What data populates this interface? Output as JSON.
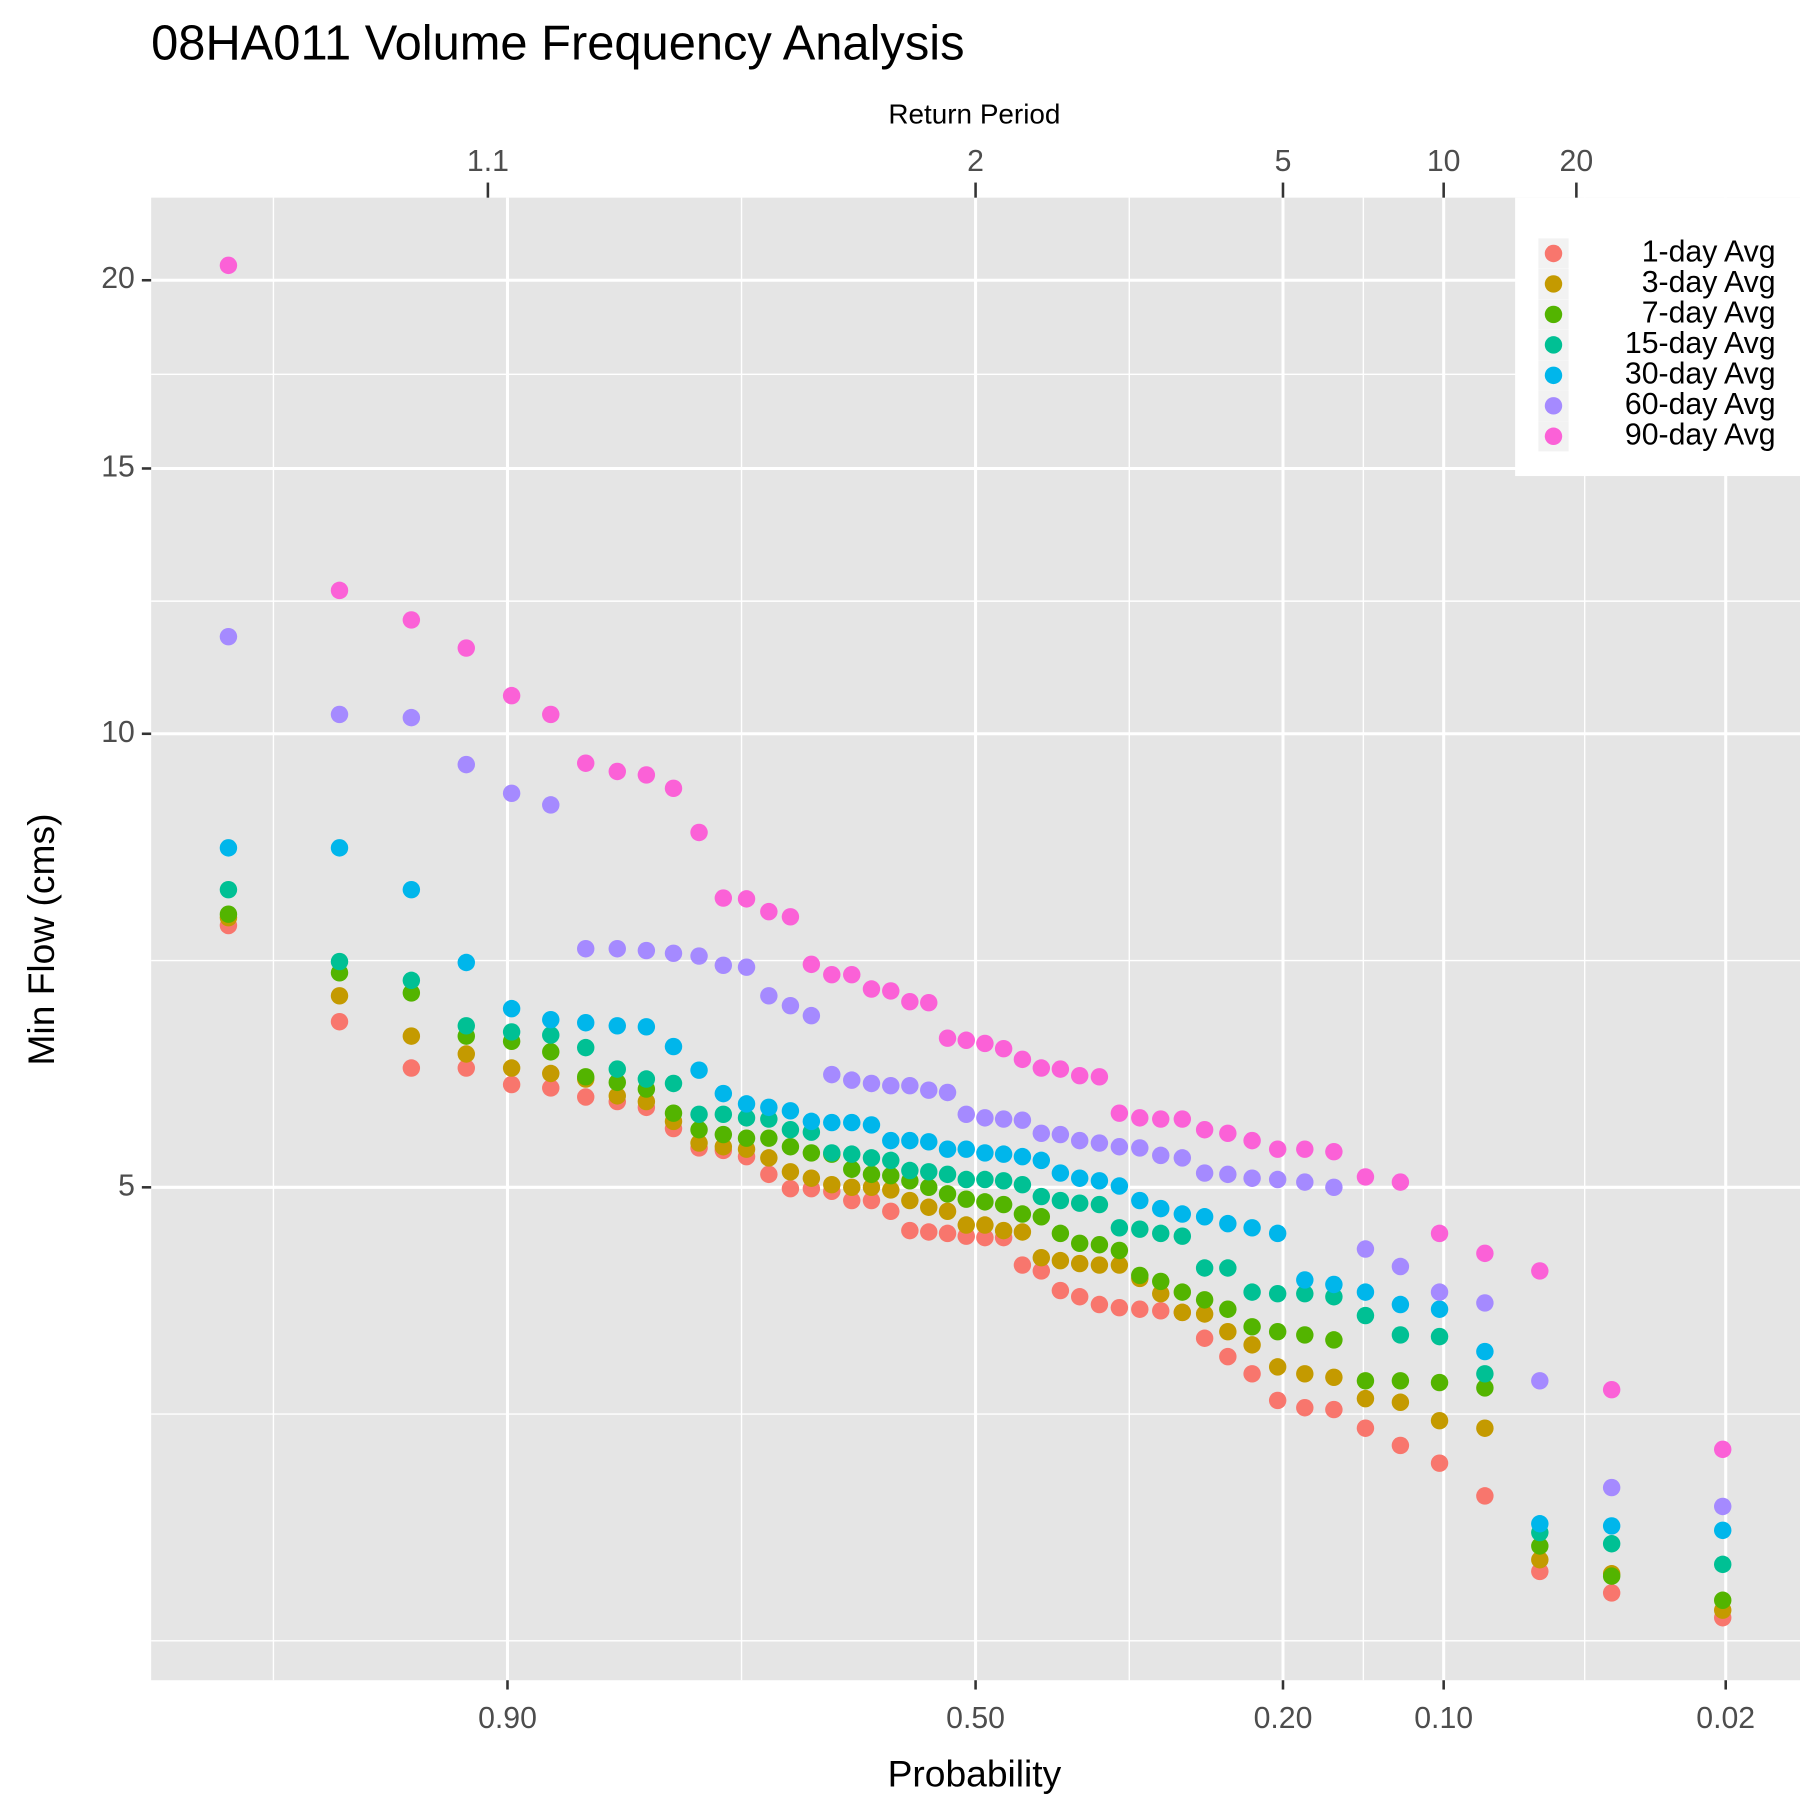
{
  "chart_data": {
    "type": "scatter",
    "title": "08HA011  Volume Frequency Analysis",
    "x_label": "Probability",
    "x2_label": "Return Period",
    "y_label": "Min Flow (cms)",
    "x_scale": "normal-probability",
    "y_scale": "log",
    "grid": true,
    "legend": "top-right",
    "xlim": [
      0.988,
      0.012
    ],
    "xticks": [
      {
        "value": 0.9,
        "label": "0.90"
      },
      {
        "value": 0.5,
        "label": "0.50"
      },
      {
        "value": 0.2,
        "label": "0.20"
      },
      {
        "value": 0.1,
        "label": "0.10"
      },
      {
        "value": 0.02,
        "label": "0.02"
      }
    ],
    "x2ticks": [
      1.1,
      2,
      5,
      10,
      20
    ],
    "ylim": [
      2.354,
      22.69
    ],
    "yticks": [
      5,
      10,
      15,
      20
    ],
    "x": [
      0.9796,
      0.9592,
      0.9388,
      0.9184,
      0.898,
      0.8776,
      0.8571,
      0.8367,
      0.8163,
      0.7959,
      0.7755,
      0.7551,
      0.7347,
      0.7143,
      0.6939,
      0.6735,
      0.6531,
      0.6327,
      0.6122,
      0.5918,
      0.5714,
      0.551,
      0.5306,
      0.5102,
      0.4898,
      0.4694,
      0.449,
      0.4286,
      0.4082,
      0.3878,
      0.3673,
      0.3469,
      0.3265,
      0.3061,
      0.2857,
      0.2653,
      0.2449,
      0.2245,
      0.2041,
      0.1837,
      0.1633,
      0.1429,
      0.1224,
      0.102,
      0.0816,
      0.0612,
      0.0408,
      0.0204
    ],
    "series": [
      {
        "name": "1-day Avg",
        "color": "#F8766D",
        "values": [
          7.46,
          6.44,
          6.0,
          6.0,
          5.85,
          5.82,
          5.74,
          5.7,
          5.65,
          5.47,
          5.31,
          5.29,
          5.24,
          5.1,
          4.99,
          4.99,
          4.97,
          4.9,
          4.9,
          4.82,
          4.68,
          4.67,
          4.66,
          4.64,
          4.63,
          4.63,
          4.44,
          4.4,
          4.27,
          4.23,
          4.18,
          4.16,
          4.15,
          4.14,
          4.13,
          3.97,
          3.86,
          3.76,
          3.61,
          3.57,
          3.56,
          3.46,
          3.37,
          3.28,
          3.12,
          2.78,
          2.69,
          2.59
        ]
      },
      {
        "name": "3-day Avg",
        "color": "#C49A00",
        "values": [
          7.55,
          6.7,
          6.3,
          6.13,
          6.0,
          5.95,
          5.9,
          5.75,
          5.7,
          5.53,
          5.35,
          5.32,
          5.3,
          5.23,
          5.12,
          5.07,
          5.02,
          5.0,
          5.0,
          4.98,
          4.9,
          4.85,
          4.82,
          4.72,
          4.72,
          4.68,
          4.67,
          4.49,
          4.47,
          4.45,
          4.44,
          4.44,
          4.35,
          4.25,
          4.13,
          4.12,
          4.01,
          3.93,
          3.8,
          3.76,
          3.74,
          3.62,
          3.6,
          3.5,
          3.46,
          2.83,
          2.77,
          2.62
        ]
      },
      {
        "name": "7-day Avg",
        "color": "#53B400",
        "values": [
          7.59,
          6.94,
          6.73,
          6.3,
          6.25,
          6.15,
          5.92,
          5.87,
          5.81,
          5.6,
          5.46,
          5.42,
          5.39,
          5.39,
          5.32,
          5.27,
          5.26,
          5.14,
          5.1,
          5.09,
          5.05,
          5.0,
          4.95,
          4.91,
          4.89,
          4.87,
          4.8,
          4.78,
          4.66,
          4.59,
          4.58,
          4.54,
          4.37,
          4.33,
          4.26,
          4.21,
          4.15,
          4.04,
          4.01,
          3.99,
          3.96,
          3.72,
          3.72,
          3.71,
          3.68,
          2.89,
          2.76,
          2.66
        ]
      },
      {
        "name": "15-day Avg",
        "color": "#00C094",
        "values": [
          7.88,
          7.06,
          6.86,
          6.4,
          6.34,
          6.31,
          6.19,
          5.99,
          5.9,
          5.86,
          5.59,
          5.59,
          5.56,
          5.55,
          5.46,
          5.44,
          5.27,
          5.26,
          5.23,
          5.21,
          5.13,
          5.12,
          5.1,
          5.06,
          5.06,
          5.05,
          5.02,
          4.93,
          4.9,
          4.88,
          4.87,
          4.7,
          4.69,
          4.66,
          4.64,
          4.42,
          4.42,
          4.26,
          4.25,
          4.25,
          4.23,
          4.11,
          3.99,
          3.98,
          3.76,
          2.95,
          2.9,
          2.81
        ]
      },
      {
        "name": "30-day Avg",
        "color": "#00B6EB",
        "values": [
          8.4,
          8.4,
          7.88,
          7.05,
          6.57,
          6.46,
          6.43,
          6.4,
          6.39,
          6.2,
          5.98,
          5.77,
          5.68,
          5.65,
          5.62,
          5.53,
          5.52,
          5.52,
          5.5,
          5.37,
          5.37,
          5.36,
          5.3,
          5.3,
          5.27,
          5.26,
          5.24,
          5.21,
          5.11,
          5.07,
          5.05,
          5.01,
          4.9,
          4.84,
          4.8,
          4.78,
          4.73,
          4.7,
          4.66,
          4.34,
          4.31,
          4.26,
          4.18,
          4.15,
          3.89,
          2.99,
          2.98,
          2.96
        ]
      },
      {
        "name": "60-day Avg",
        "color": "#A58AFF",
        "values": [
          11.6,
          10.3,
          10.25,
          9.54,
          9.13,
          8.97,
          7.2,
          7.2,
          7.18,
          7.15,
          7.12,
          7.02,
          7.0,
          6.7,
          6.6,
          6.5,
          5.94,
          5.89,
          5.86,
          5.84,
          5.84,
          5.8,
          5.78,
          5.59,
          5.56,
          5.55,
          5.54,
          5.43,
          5.42,
          5.37,
          5.35,
          5.32,
          5.31,
          5.25,
          5.23,
          5.11,
          5.1,
          5.07,
          5.06,
          5.04,
          5.0,
          4.55,
          4.43,
          4.26,
          4.19,
          3.72,
          3.16,
          3.07
        ]
      },
      {
        "name": "90-day Avg",
        "color": "#FB61D7",
        "values": [
          20.46,
          12.45,
          11.9,
          11.4,
          10.6,
          10.3,
          9.56,
          9.44,
          9.39,
          9.2,
          8.6,
          7.78,
          7.77,
          7.62,
          7.56,
          7.03,
          6.92,
          6.92,
          6.77,
          6.75,
          6.64,
          6.63,
          6.28,
          6.26,
          6.23,
          6.18,
          6.08,
          6.0,
          5.99,
          5.93,
          5.92,
          5.6,
          5.56,
          5.55,
          5.55,
          5.46,
          5.43,
          5.37,
          5.3,
          5.3,
          5.28,
          5.08,
          5.04,
          4.66,
          4.52,
          4.4,
          3.67,
          3.35
        ]
      }
    ]
  }
}
